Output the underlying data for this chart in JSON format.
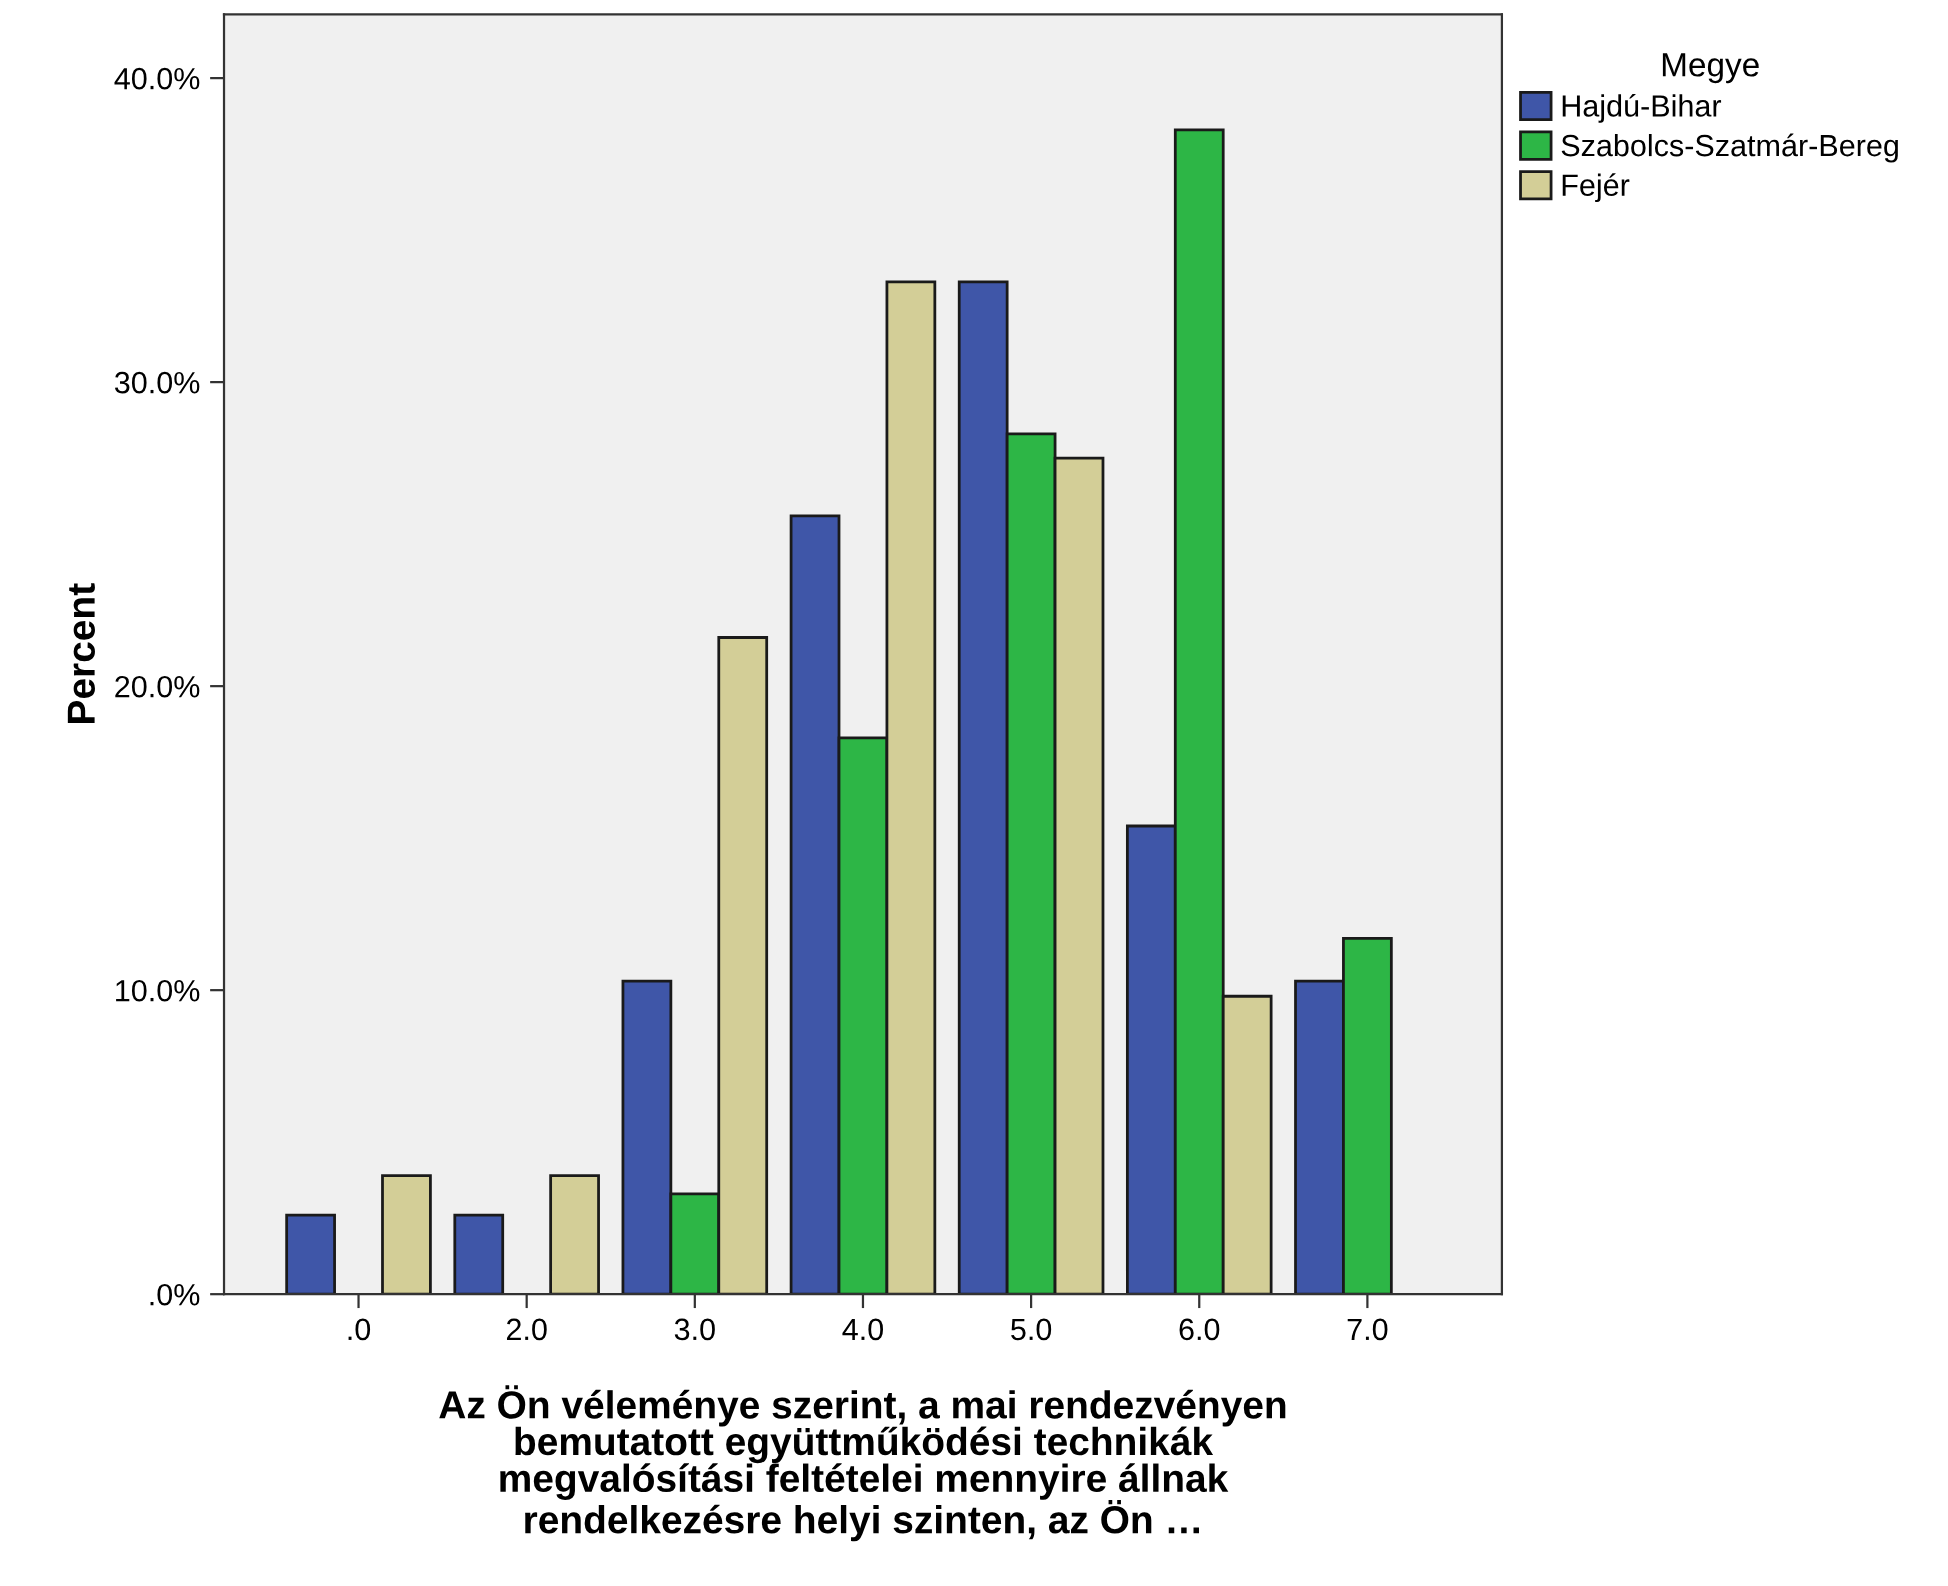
{
  "chart_data": {
    "type": "bar",
    "xlabel": "Az Ön véleménye szerint, a mai rendezvényen\nbemutatott együttműködési technikák\nmegvalósítási feltételei mennyire állnak\nrendelkezésre helyi szinten, az Ön …",
    "ylabel": "Percent",
    "legend_title": "Megye",
    "categories": [
      ".0",
      "2.0",
      "3.0",
      "4.0",
      "5.0",
      "6.0",
      "7.0"
    ],
    "series": [
      {
        "name": "Hajdú-Bihar",
        "color": "#3f56a8",
        "values": [
          2.6,
          2.6,
          10.3,
          25.6,
          33.3,
          15.4,
          10.3
        ]
      },
      {
        "name": "Szabolcs-Szatmár-Bereg",
        "color": "#2db646",
        "values": [
          0,
          0,
          3.3,
          18.3,
          28.3,
          38.3,
          11.7
        ]
      },
      {
        "name": "Fejér",
        "color": "#d3ce97",
        "values": [
          3.9,
          3.9,
          21.6,
          33.3,
          27.5,
          9.8,
          0
        ]
      }
    ],
    "ylim": [
      0,
      42.1
    ],
    "yticks": [
      {
        "value": 0,
        "label": ".0%"
      },
      {
        "value": 10,
        "label": "10.0%"
      },
      {
        "value": 20,
        "label": "20.0%"
      },
      {
        "value": 30,
        "label": "30.0%"
      },
      {
        "value": 40,
        "label": "40.0%"
      }
    ],
    "legend": "top right",
    "grid": false
  }
}
